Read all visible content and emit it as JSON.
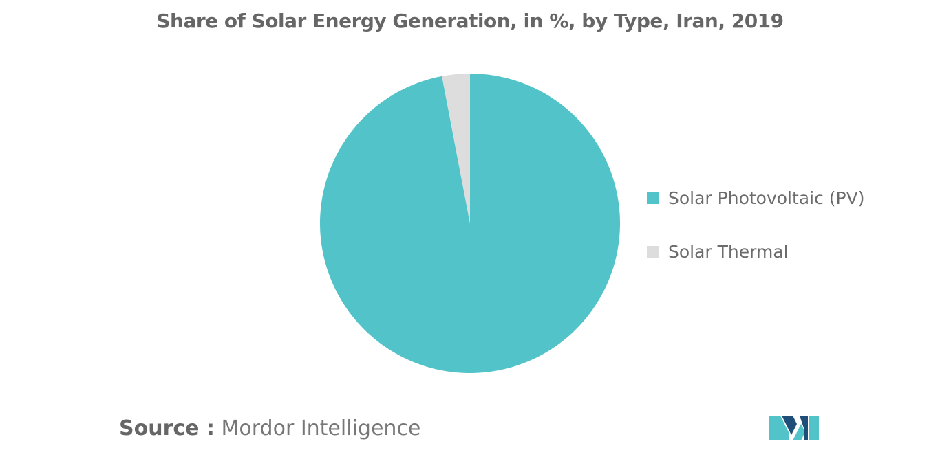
{
  "chart_data": {
    "type": "pie",
    "title": "Share of Solar Energy Generation, in %, by Type, Iran, 2019",
    "slices": [
      {
        "name": "Solar Photovoltaic (PV)",
        "value": 97,
        "color": "#52c3c9"
      },
      {
        "name": "Solar Thermal",
        "value": 3,
        "color": "#dddddd"
      }
    ],
    "legend_position": "right"
  },
  "source": {
    "label": "Source :",
    "value": "Mordor Intelligence"
  },
  "logo": {
    "icon": "mordor-intelligence-logo-icon",
    "colors": [
      "#1f4e79",
      "#52c3c9"
    ]
  }
}
